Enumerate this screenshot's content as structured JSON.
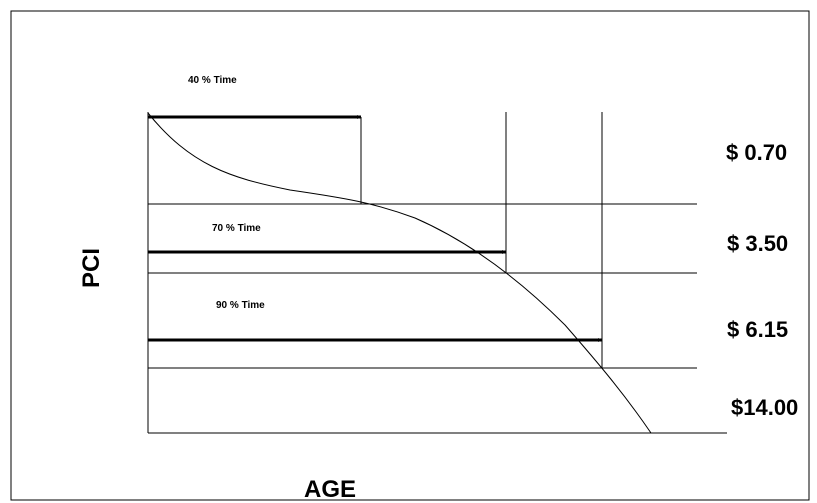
{
  "diagram": {
    "axes": {
      "y_label": "PCI",
      "x_label": "AGE"
    },
    "arrows": [
      {
        "label": "40 % Time"
      },
      {
        "label": "70 % Time"
      },
      {
        "label": "90 % Time"
      }
    ],
    "costs": [
      {
        "label": "$ 0.70"
      },
      {
        "label": "$ 3.50"
      },
      {
        "label": "$ 6.15"
      },
      {
        "label": "$14.00"
      }
    ],
    "colors": {
      "line": "#000000",
      "background": "#ffffff"
    }
  }
}
